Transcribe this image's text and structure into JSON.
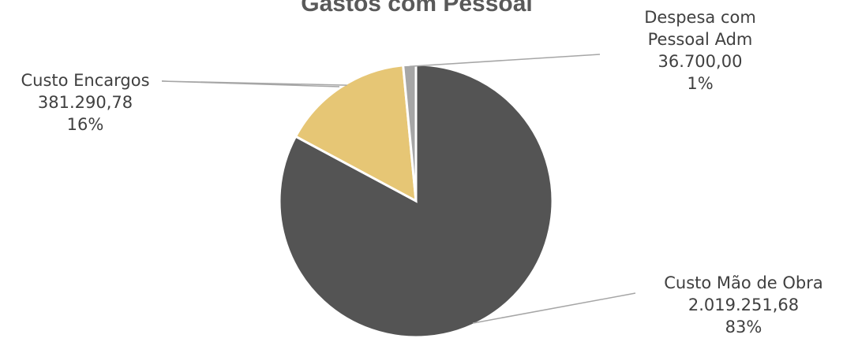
{
  "chart_data": {
    "type": "pie",
    "title": "Gastos com Pessoal",
    "categories": [
      "Custo Mão de Obra",
      "Custo Encargos",
      "Despesa com Pessoal Adm"
    ],
    "values": [
      2019251.68,
      381290.78,
      36700.0
    ],
    "value_labels": [
      "2.019.251,68",
      "381.290,78",
      "36.700,00"
    ],
    "percent_labels": [
      "83%",
      "16%",
      "1%"
    ],
    "label_lines": [
      [
        "Custo Mão de Obra"
      ],
      [
        "Custo Encargos"
      ],
      [
        "Despesa com",
        "Pessoal Adm"
      ]
    ],
    "colors": [
      "#545454",
      "#e6c675",
      "#a6a6a6"
    ],
    "start_angle_deg": 0,
    "direction": "clockwise",
    "legend": "none"
  }
}
